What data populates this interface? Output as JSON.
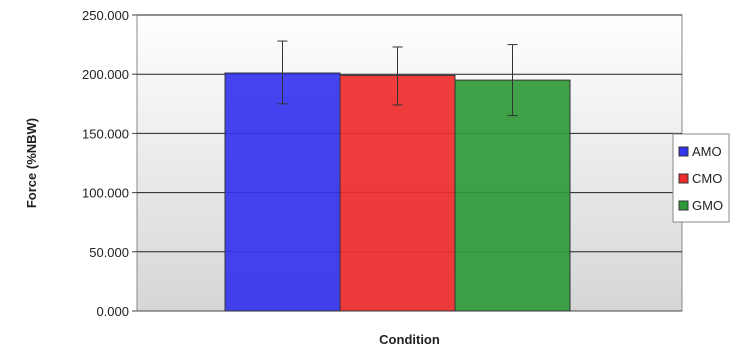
{
  "chart_data": {
    "type": "bar",
    "title": "",
    "xlabel": "Condition",
    "ylabel": "Force (%NBW)",
    "ylim": [
      0,
      250
    ],
    "yticks": [
      0,
      50,
      100,
      150,
      200,
      250
    ],
    "ytick_labels": [
      "0.000",
      "50.000",
      "100.000",
      "150.000",
      "200.000",
      "250.000"
    ],
    "grid": true,
    "legend_position": "right",
    "series": [
      {
        "name": "AMO",
        "value": 201,
        "error_low": 175,
        "error_high": 228,
        "color": "#3333ee"
      },
      {
        "name": "CMO",
        "value": 199,
        "error_low": 174,
        "error_high": 223,
        "color": "#ee2b2b"
      },
      {
        "name": "GMO",
        "value": 195,
        "error_low": 165,
        "error_high": 225,
        "color": "#2f9a3a"
      }
    ]
  }
}
